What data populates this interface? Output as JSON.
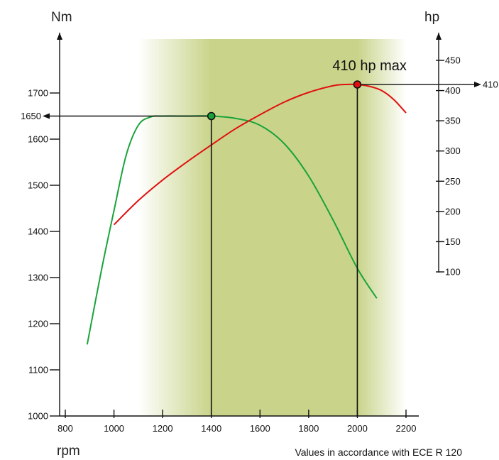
{
  "chart_data": {
    "type": "line",
    "left_axis": {
      "label": "Nm",
      "ticks": [
        1000,
        1100,
        1200,
        1300,
        1400,
        1500,
        1600,
        1700
      ],
      "range": [
        1000,
        1745
      ]
    },
    "right_axis": {
      "label": "hp",
      "ticks": [
        100,
        150,
        200,
        250,
        300,
        350,
        400,
        450
      ],
      "range": [
        100,
        475
      ]
    },
    "x_axis": {
      "label": "rpm",
      "ticks": [
        800,
        1000,
        1200,
        1400,
        1600,
        1800,
        2000,
        2200
      ],
      "range": [
        780,
        2260
      ]
    },
    "shaded_band": {
      "from": 1100,
      "to": 2200,
      "core_from": 1400,
      "core_to": 2000
    },
    "series": [
      {
        "axis": "left",
        "color": "#1aa33a",
        "x": [
          890,
          950,
          1000,
          1050,
          1100,
          1150,
          1200,
          1300,
          1400,
          1500,
          1600,
          1700,
          1800,
          1900,
          2000,
          2080
        ],
        "y": [
          1155,
          1320,
          1445,
          1565,
          1630,
          1648,
          1650,
          1650,
          1650,
          1645,
          1630,
          1590,
          1520,
          1425,
          1320,
          1255
        ]
      },
      {
        "axis": "right",
        "color": "#e01010",
        "x": [
          1000,
          1100,
          1200,
          1300,
          1400,
          1500,
          1600,
          1700,
          1800,
          1900,
          1950,
          2000,
          2050,
          2100,
          2150,
          2200
        ],
        "y": [
          178,
          218,
          252,
          282,
          310,
          337,
          360,
          381,
          397,
          408,
          410,
          410,
          407,
          400,
          385,
          363
        ]
      }
    ],
    "markers": [
      {
        "axis": "left",
        "x": 1400,
        "y": 1650,
        "color": "#1aa33a",
        "value_label": "1650",
        "direction": "left"
      },
      {
        "axis": "right",
        "x": 2000,
        "y": 410,
        "color": "#e01010",
        "value_label": "410",
        "direction": "right",
        "annotation": "410 hp max"
      }
    ],
    "note": "Values in accordance with ECE R 120"
  }
}
